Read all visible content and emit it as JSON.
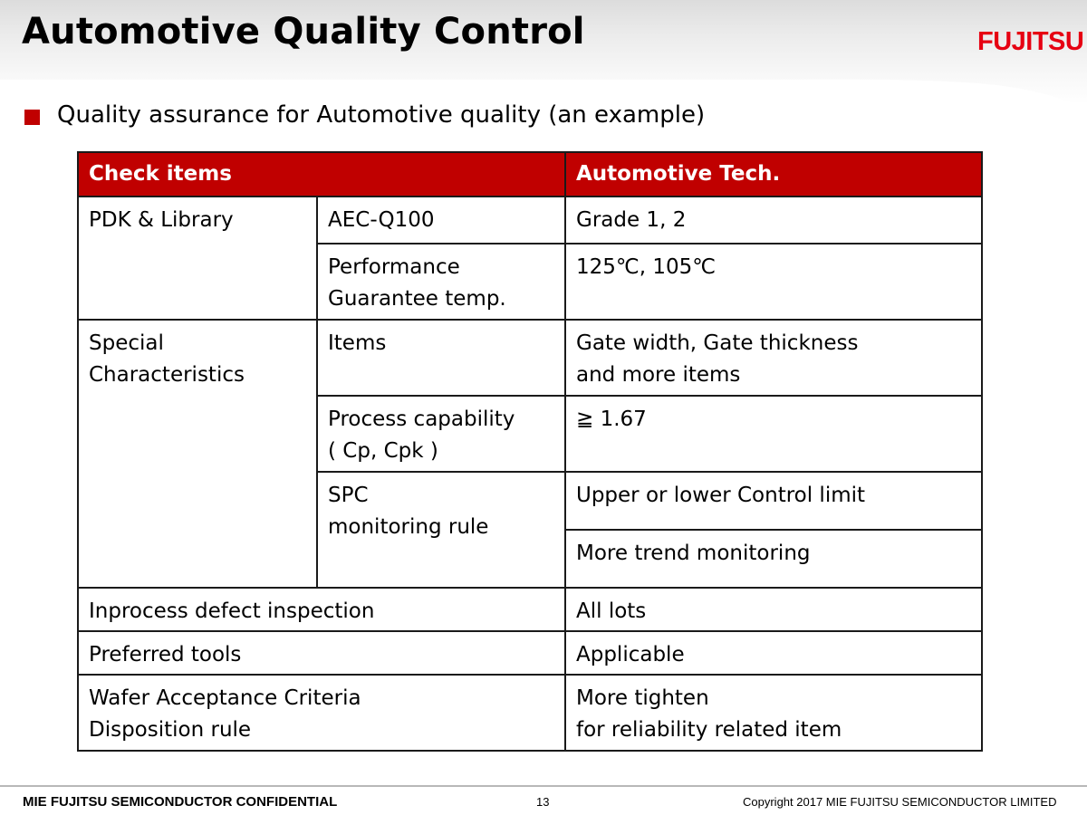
{
  "slide": {
    "title": "Automotive Quality Control",
    "logo_text": "FUJITSU",
    "bullet": "Quality assurance for Automotive quality  (an example)",
    "accent_color": "#c00000"
  },
  "table": {
    "headers": {
      "check_items": "Check items",
      "automotive_tech": "Automotive Tech."
    },
    "pdk": {
      "label": "PDK & Library",
      "aec": {
        "item": "AEC-Q100",
        "value": "Grade 1, 2"
      },
      "temp": {
        "item_line1": "Performance",
        "item_line2": "Guarantee temp.",
        "value": "125℃, 105℃"
      }
    },
    "special": {
      "label_line1": "Special",
      "label_line2": "Characteristics",
      "items": {
        "item": "Items",
        "value_line1": "Gate width, Gate thickness",
        "value_line2": "and more items"
      },
      "process": {
        "item_line1": "Process capability",
        "item_line2": "( Cp, Cpk )",
        "value": "≧ 1.67"
      },
      "spc": {
        "item_line1": "SPC",
        "item_line2": "monitoring rule",
        "value1": "Upper or lower Control limit",
        "value2": "More trend monitoring"
      }
    },
    "inprocess": {
      "label": "Inprocess defect inspection",
      "value": "All lots"
    },
    "tools": {
      "label": "Preferred tools",
      "value": "Applicable"
    },
    "wafer": {
      "label_line1": "Wafer Acceptance Criteria",
      "label_line2": "Disposition rule",
      "value_line1": "More tighten",
      "value_line2": "for reliability related item"
    }
  },
  "footer": {
    "confidential": "MIE FUJITSU SEMICONDUCTOR CONFIDENTIAL",
    "page_number": "13",
    "copyright": "Copyright 2017 MIE FUJITSU SEMICONDUCTOR LIMITED"
  }
}
